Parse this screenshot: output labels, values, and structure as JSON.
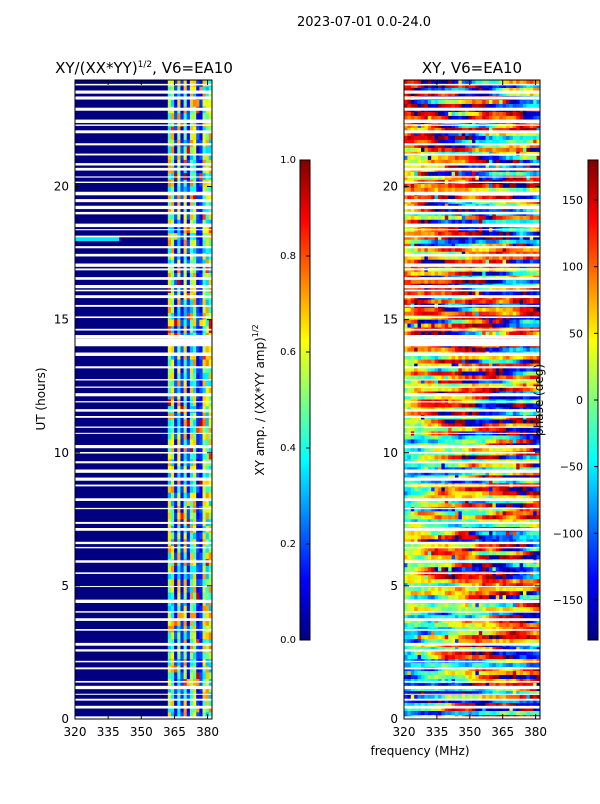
{
  "figure": {
    "suptitle": "2023-07-01 0.0-24.0",
    "xlabel": "frequency (MHz)"
  },
  "chart_data": [
    {
      "type": "heatmap",
      "title": "XY/(XX*YY)^{1/2}, V6=EA10",
      "title_main": "XY/(XX*YY)",
      "title_exp": "1/2",
      "title_suffix": ", V6=EA10",
      "xlabel": "frequency (MHz)",
      "ylabel": "UT (hours)",
      "xlim": [
        320,
        382
      ],
      "ylim": [
        0,
        24
      ],
      "xticks": [
        320,
        335,
        350,
        365,
        380
      ],
      "yticks": [
        0,
        5,
        10,
        15,
        20
      ],
      "quantity": "normalized XY amplitude",
      "colorbar": {
        "label_main": "XY amp. / (XX*YY amp)",
        "label_exp": "1/2",
        "range": [
          0.0,
          1.0
        ],
        "ticks": [
          "0.0",
          "0.2",
          "0.4",
          "0.6",
          "0.8",
          "1.0"
        ],
        "colormap": "jet"
      },
      "description_of_pattern": "near-zero amplitude below ~362 MHz; elevated amplitude band 362-382 MHz; white rows are flagged time gaps"
    },
    {
      "type": "heatmap",
      "title": "XY, V6=EA10",
      "xlabel": "frequency (MHz)",
      "ylabel": "",
      "xlim": [
        320,
        382
      ],
      "ylim": [
        0,
        24
      ],
      "xticks": [
        320,
        335,
        350,
        365,
        380
      ],
      "yticks": [
        0,
        5,
        10,
        15,
        20
      ],
      "quantity": "XY phase (deg)",
      "colorbar": {
        "label": "phase (deg)",
        "range": [
          -180,
          180
        ],
        "ticks": [
          "150",
          "100",
          "50",
          "0",
          "−50",
          "−100",
          "−150"
        ],
        "colormap": "jet"
      }
    }
  ],
  "colors": {
    "jet_stops": [
      "#00007f",
      "#0000ff",
      "#007fff",
      "#00ffff",
      "#7fff7f",
      "#ffff00",
      "#ff7f00",
      "#ff0000",
      "#7f0000"
    ]
  }
}
